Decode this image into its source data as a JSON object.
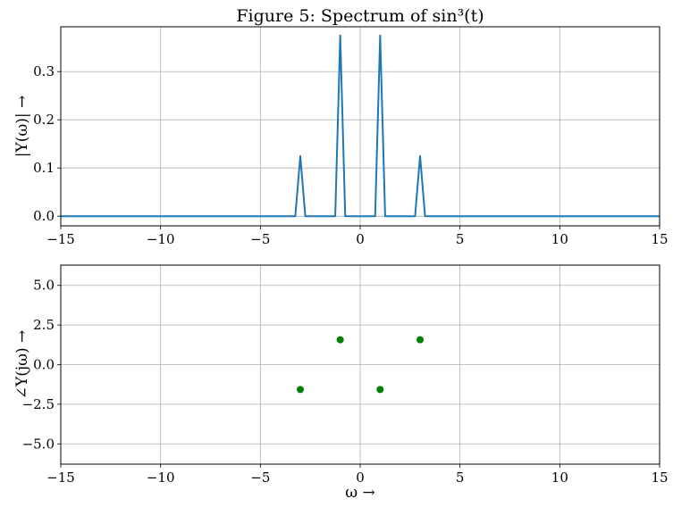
{
  "chart_data": [
    {
      "type": "line",
      "title": "Figure 5: Spectrum of sin³(t)",
      "xlabel": "",
      "ylabel": "|Y(ω)| →",
      "xlim": [
        -15,
        15
      ],
      "ylim": [
        -0.02,
        0.393
      ],
      "xticks": [
        -15,
        -10,
        -5,
        0,
        5,
        10,
        15
      ],
      "xtick_labels": [
        "−15",
        "−10",
        "−5",
        "0",
        "5",
        "10",
        "15"
      ],
      "yticks": [
        0.0,
        0.1,
        0.2,
        0.3
      ],
      "ytick_labels": [
        "0.0",
        "0.1",
        "0.2",
        "0.3"
      ],
      "grid": true,
      "series": [
        {
          "color": "#1f77b4",
          "x": [
            -15,
            -3.25,
            -3,
            -2.75,
            -1.25,
            -1,
            -0.75,
            0.75,
            1,
            1.25,
            2.75,
            3,
            3.25,
            15
          ],
          "y": [
            0,
            0,
            0.125,
            0,
            0,
            0.375,
            0,
            0,
            0.375,
            0,
            0,
            0.125,
            0,
            0
          ]
        }
      ]
    },
    {
      "type": "scatter",
      "title": "",
      "xlabel": "ω →",
      "ylabel": "∠Y(jω) →",
      "xlim": [
        -15,
        15
      ],
      "ylim": [
        -6.28,
        6.28
      ],
      "xticks": [
        -15,
        -10,
        -5,
        0,
        5,
        10,
        15
      ],
      "xtick_labels": [
        "−15",
        "−10",
        "−5",
        "0",
        "5",
        "10",
        "15"
      ],
      "yticks": [
        -5.0,
        -2.5,
        0.0,
        2.5,
        5.0
      ],
      "ytick_labels": [
        "−5.0",
        "−2.5",
        "0.0",
        "2.5",
        "5.0"
      ],
      "grid": true,
      "series": [
        {
          "color": "#008000",
          "x": [
            -3,
            -1,
            1,
            3
          ],
          "y": [
            -1.5708,
            1.5708,
            -1.5708,
            1.5708
          ]
        }
      ]
    }
  ]
}
